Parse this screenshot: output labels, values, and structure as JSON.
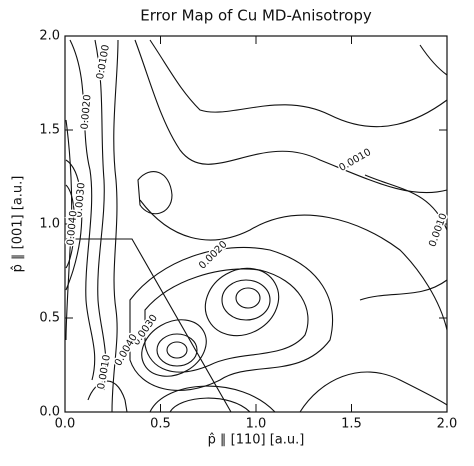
{
  "chart_data": {
    "type": "contour",
    "title": "Error Map of Cu MD-Anisotropy",
    "x_label": "p̂ ∥ [110]   [a.u.]",
    "y_label": "p̂ ∥ [001]   [a.u.]",
    "xlim": [
      0,
      2
    ],
    "ylim": [
      0,
      2
    ],
    "xticks": [
      {
        "value": 0,
        "label": "0.0"
      },
      {
        "value": 0.5,
        "label": "0.5"
      },
      {
        "value": 1,
        "label": "1.0"
      },
      {
        "value": 1.5,
        "label": "1.5"
      },
      {
        "value": 2,
        "label": "2.0"
      }
    ],
    "yticks": [
      {
        "value": 0,
        "label": "0.0"
      },
      {
        "value": 0.5,
        "label": "0.5"
      },
      {
        "value": 1,
        "label": "1.0"
      },
      {
        "value": 1.5,
        "label": "1.5"
      },
      {
        "value": 2,
        "label": "2.0"
      }
    ],
    "color": "#111111",
    "contour_labels": [
      {
        "value": 0.01,
        "label": "0.0100"
      },
      {
        "value": 0.002,
        "label": "0.0020"
      },
      {
        "value": 0.003,
        "label": "0.0030"
      },
      {
        "value": 0.004,
        "label": "0.0040"
      },
      {
        "value": 0.001,
        "label": "0.0010"
      },
      {
        "value": 0.001,
        "label": "0.0010"
      },
      {
        "value": 0.002,
        "label": "0.0020"
      },
      {
        "value": 0.003,
        "label": "0.0030"
      },
      {
        "value": 0.004,
        "label": "0.0040"
      },
      {
        "value": 0.001,
        "label": "0.0010"
      }
    ]
  }
}
